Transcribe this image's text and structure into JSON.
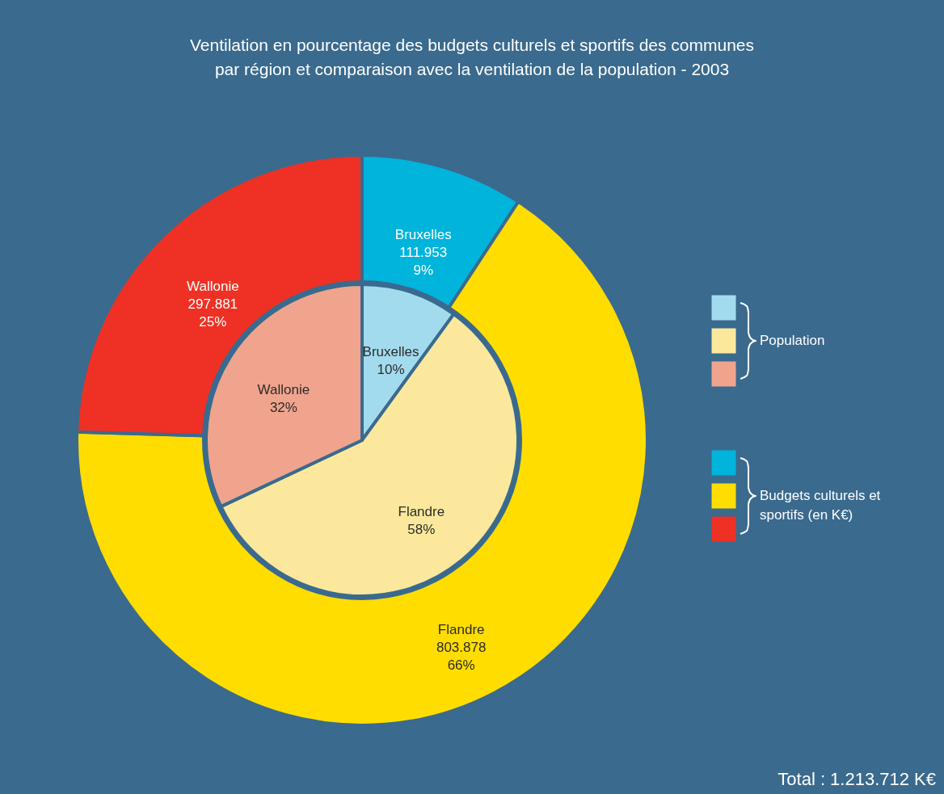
{
  "chart_data": {
    "type": "donut",
    "title": "Ventilation en pourcentage des budgets culturels et sportifs des communes\npar région et comparaison avec la ventilation de la population  - 2003",
    "categories": [
      "Bruxelles",
      "Flandre",
      "Wallonie"
    ],
    "series": [
      {
        "name": "Budgets culturels et sportifs (en K€)",
        "colors": [
          "#00b4dc",
          "#ffdd00",
          "#ee3124"
        ],
        "values": [
          111953,
          803878,
          297881
        ],
        "value_labels": [
          "111.953\n9%",
          "803.878\n66%",
          "297.881\n25%"
        ]
      },
      {
        "name": "Population",
        "type": "pie",
        "colors": [
          "#a3dbee",
          "#fbe89c",
          "#f0a48d"
        ],
        "values": [
          10,
          58,
          32
        ],
        "value_labels": [
          "10%",
          "58%",
          "32%"
        ]
      }
    ],
    "legend": "right",
    "annotations": [
      "Total : 1.213.712 K€"
    ]
  }
}
